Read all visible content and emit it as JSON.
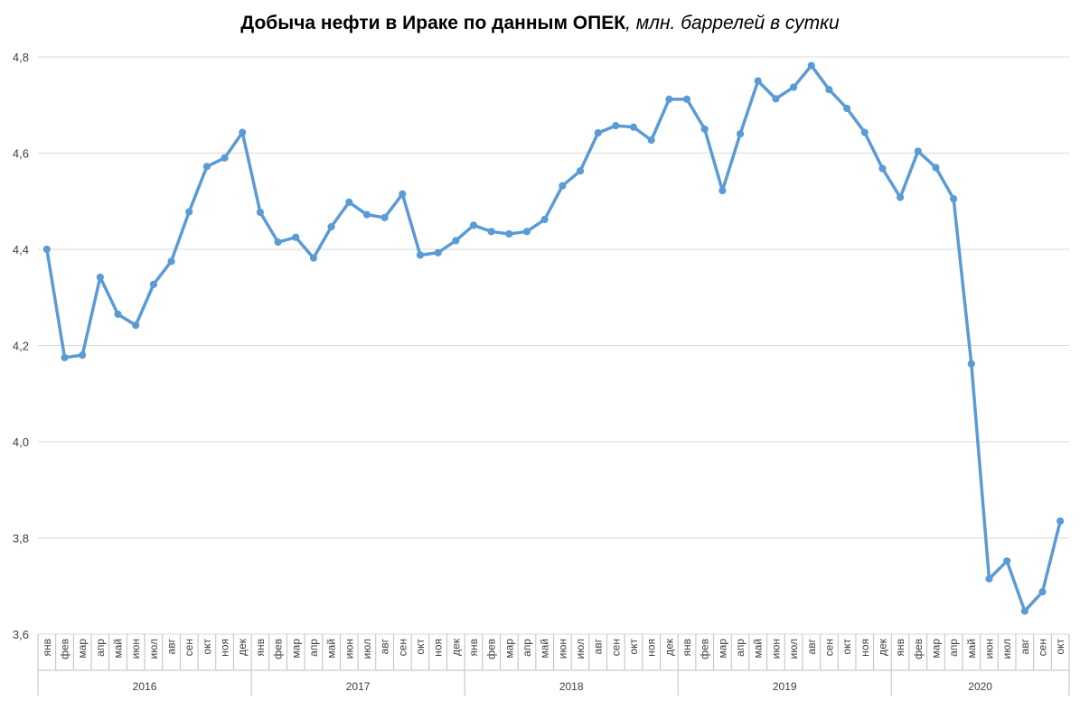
{
  "title": {
    "main": "Добыча нефти в Ираке по данным ОПЕК",
    "unit": ", млн. баррелей в сутки"
  },
  "colors": {
    "series": "#5b9bd5",
    "grid": "#d9d9d9",
    "axis": "#bfbfbf",
    "text": "#404040"
  },
  "chart_data": {
    "type": "line",
    "title": "Добыча нефти в Ираке по данным ОПЕК, млн. баррелей в сутки",
    "ylim": [
      3.6,
      4.8
    ],
    "yticks": [
      "3,6",
      "3,8",
      "4,0",
      "4,2",
      "4,4",
      "4,6",
      "4,8"
    ],
    "grid": true,
    "legend": "none",
    "month_labels": [
      "янв",
      "фев",
      "мар",
      "апр",
      "май",
      "июн",
      "июл",
      "авг",
      "сен",
      "окт",
      "ноя",
      "дек"
    ],
    "years": [
      {
        "label": "2016",
        "months": 12
      },
      {
        "label": "2017",
        "months": 12
      },
      {
        "label": "2018",
        "months": 12
      },
      {
        "label": "2019",
        "months": 12
      },
      {
        "label": "2020",
        "months": 10
      }
    ],
    "values": [
      4.4,
      4.175,
      4.18,
      4.342,
      4.265,
      4.242,
      4.327,
      4.375,
      4.478,
      4.572,
      4.59,
      4.643,
      4.477,
      4.415,
      4.425,
      4.382,
      4.447,
      4.498,
      4.472,
      4.466,
      4.515,
      4.388,
      4.393,
      4.418,
      4.45,
      4.437,
      4.432,
      4.437,
      4.462,
      4.532,
      4.563,
      4.642,
      4.657,
      4.654,
      4.627,
      4.712,
      4.712,
      4.65,
      4.522,
      4.64,
      4.75,
      4.713,
      4.737,
      4.782,
      4.732,
      4.693,
      4.643,
      4.568,
      4.508,
      4.604,
      4.57,
      4.505,
      4.162,
      3.715,
      3.752,
      3.648,
      3.688,
      3.835
    ]
  }
}
